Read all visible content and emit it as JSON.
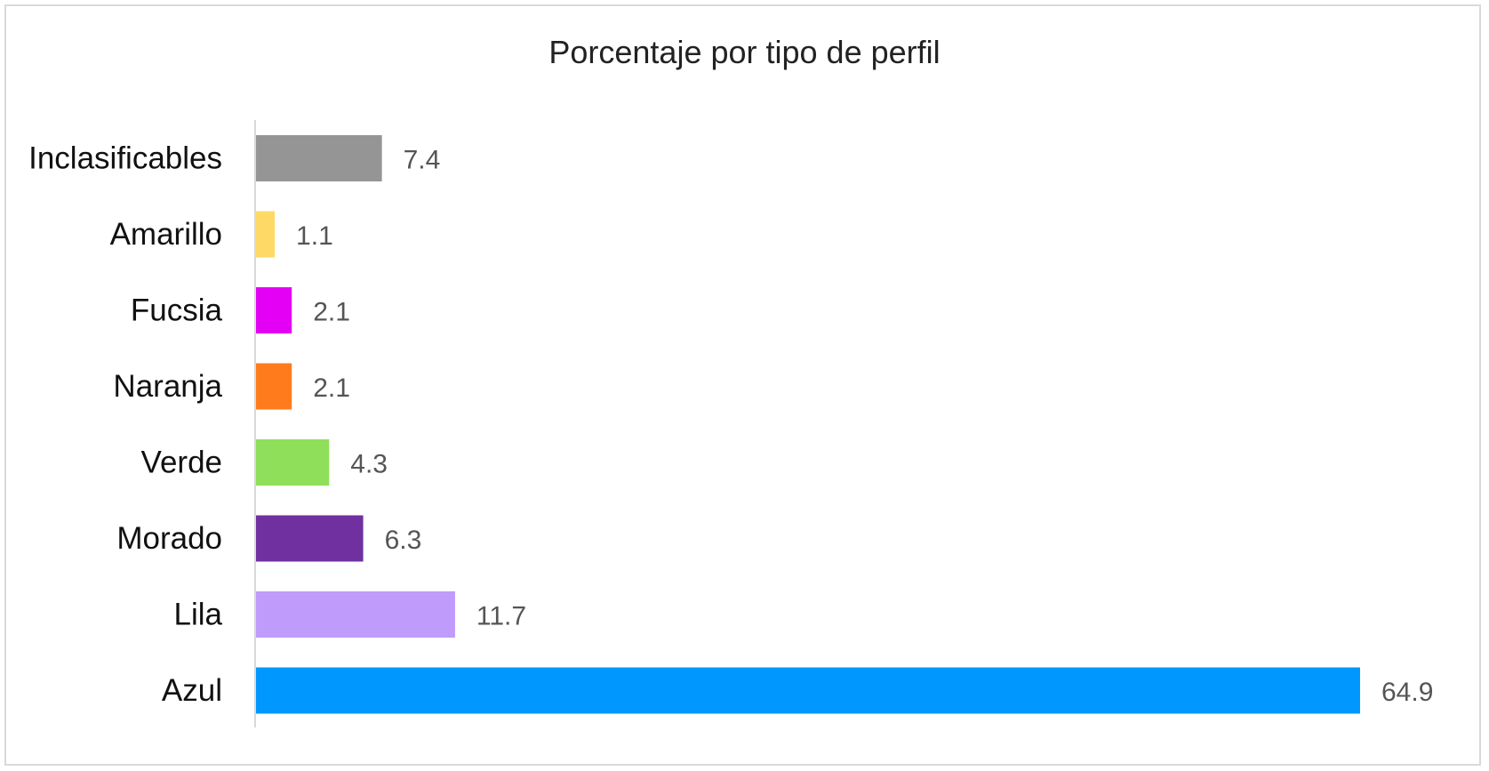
{
  "chart_data": {
    "type": "bar",
    "orientation": "horizontal",
    "title": "Porcentaje por tipo de perfil",
    "categories": [
      "Inclasificables",
      "Amarillo",
      "Fucsia",
      "Naranja",
      "Verde",
      "Morado",
      "Lila",
      "Azul"
    ],
    "values": [
      7.4,
      1.1,
      2.1,
      2.1,
      4.3,
      6.3,
      11.7,
      64.9
    ],
    "colors": [
      "#959595",
      "#ffd966",
      "#e400f4",
      "#ff7b1c",
      "#8fdf5a",
      "#7030a0",
      "#bf9bfb",
      "#0097ff"
    ],
    "xlim": [
      0,
      64.9
    ],
    "grid": false,
    "legend": "none",
    "data_labels": true
  }
}
